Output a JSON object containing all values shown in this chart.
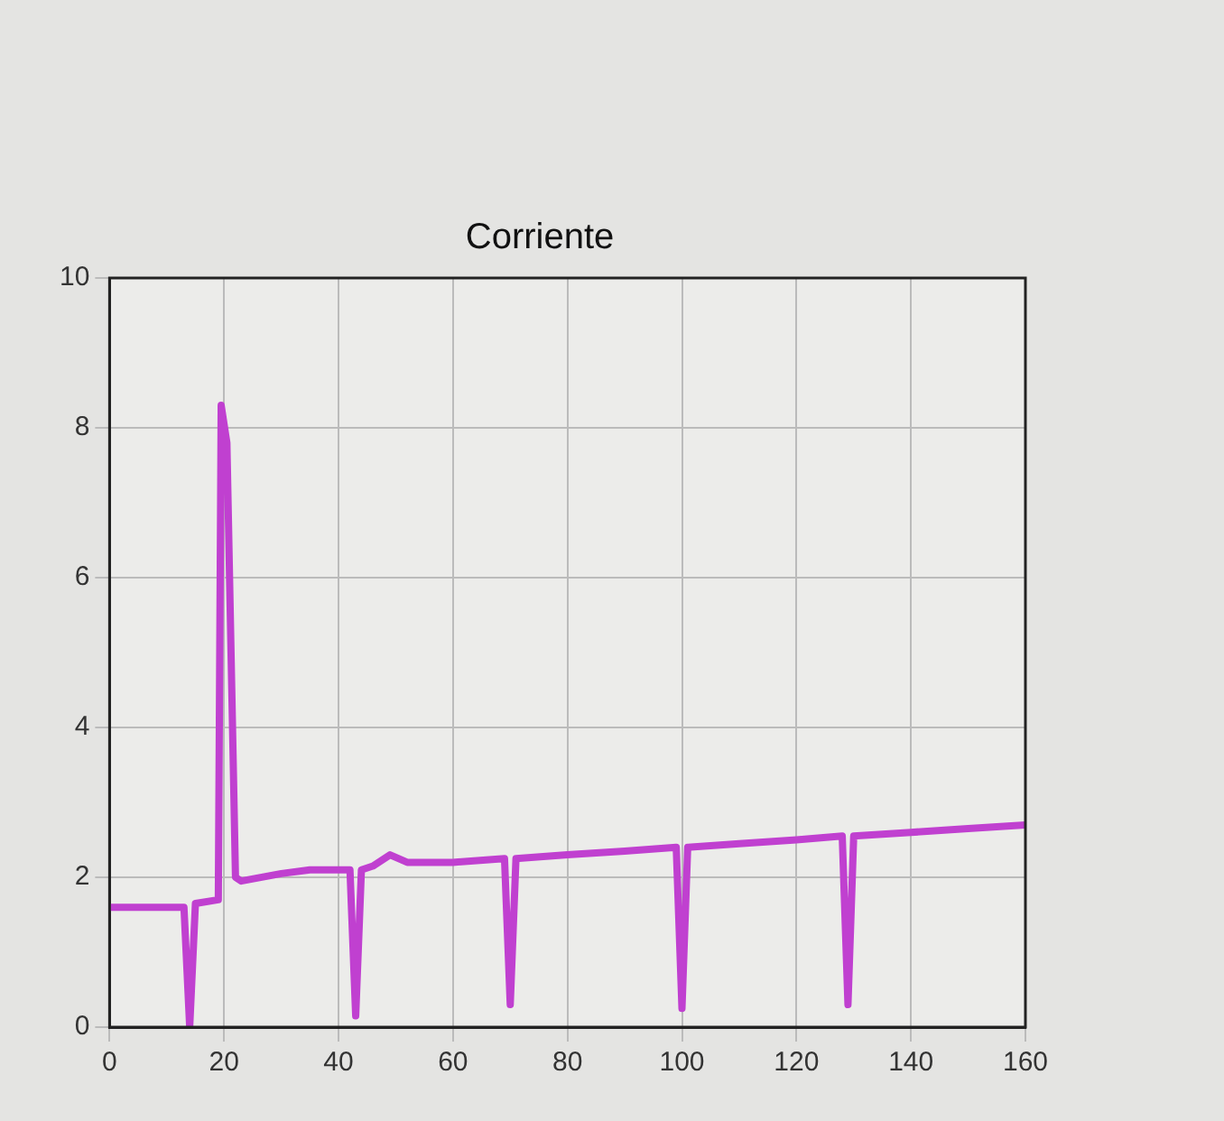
{
  "chart_data": {
    "type": "line",
    "title": "Corriente",
    "x": [
      0,
      13,
      14,
      15,
      19,
      19.5,
      20.5,
      22,
      23,
      30,
      35,
      42,
      43,
      44,
      46,
      49,
      52,
      60,
      69,
      70,
      71,
      80,
      90,
      99,
      100,
      101,
      110,
      120,
      128,
      129,
      130,
      140,
      150,
      160
    ],
    "series": [
      {
        "color": "#c040d0",
        "values": [
          1.6,
          1.6,
          0,
          1.65,
          1.7,
          8.3,
          7.8,
          2.0,
          1.95,
          2.05,
          2.1,
          2.1,
          0.15,
          2.1,
          2.15,
          2.3,
          2.2,
          2.2,
          2.25,
          0.3,
          2.25,
          2.3,
          2.35,
          2.4,
          0.25,
          2.4,
          2.45,
          2.5,
          2.55,
          0.3,
          2.55,
          2.6,
          2.65,
          2.7
        ]
      }
    ],
    "xlim": [
      0,
      160
    ],
    "xticks": [
      0,
      20,
      40,
      60,
      80,
      100,
      120,
      140,
      160
    ],
    "ylim": [
      0,
      10
    ],
    "yticks": [
      0,
      2,
      4,
      6,
      8,
      10
    ],
    "grid": true,
    "legend": false,
    "marker": "none",
    "line_style": "solid"
  }
}
